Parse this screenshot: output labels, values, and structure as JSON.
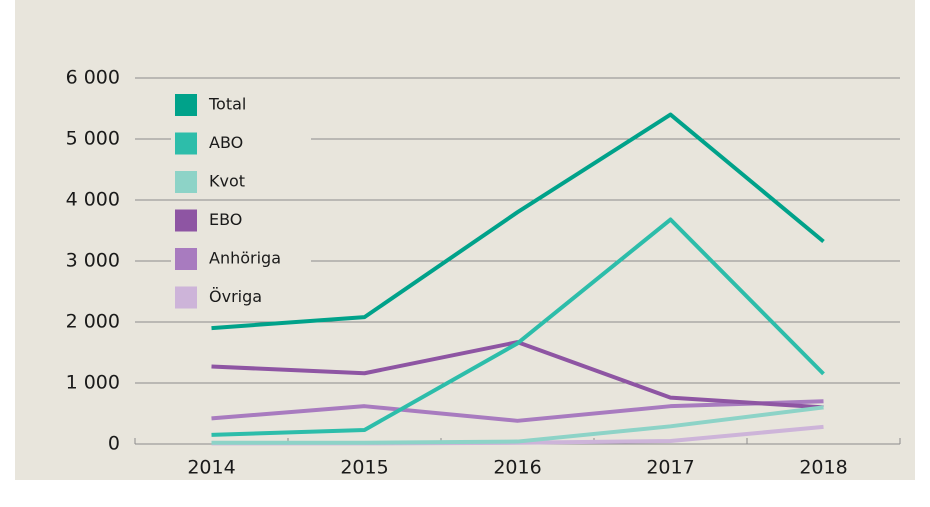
{
  "chart_data": {
    "type": "line",
    "categories": [
      "2014",
      "2015",
      "2016",
      "2017",
      "2018"
    ],
    "series": [
      {
        "name": "Total",
        "color": "#00a28a",
        "values": [
          1900,
          2080,
          3800,
          5400,
          3320
        ]
      },
      {
        "name": "ABO",
        "color": "#2dbdaa",
        "values": [
          150,
          230,
          1650,
          3680,
          1150
        ]
      },
      {
        "name": "Kvot",
        "color": "#8dd3c7",
        "values": [
          20,
          20,
          40,
          290,
          600
        ]
      },
      {
        "name": "EBO",
        "color": "#8e55a3",
        "values": [
          1270,
          1160,
          1670,
          760,
          600
        ]
      },
      {
        "name": "Anhöriga",
        "color": "#a87bbf",
        "values": [
          420,
          620,
          380,
          620,
          700
        ]
      },
      {
        "name": "Övriga",
        "color": "#cdb4d9",
        "values": [
          10,
          10,
          20,
          50,
          280
        ]
      }
    ],
    "ylim": [
      0,
      6000
    ],
    "yticks": [
      0,
      {
        "value": 1000,
        "label": "1 000"
      },
      {
        "value": 2000,
        "label": "2 000"
      },
      {
        "value": 3000,
        "label": "3 000"
      },
      {
        "value": 4000,
        "label": "4 000"
      },
      {
        "value": 5000,
        "label": "5 000"
      },
      {
        "value": 6000,
        "label": "6 000"
      }
    ],
    "grid": true,
    "legend": "upper left"
  }
}
